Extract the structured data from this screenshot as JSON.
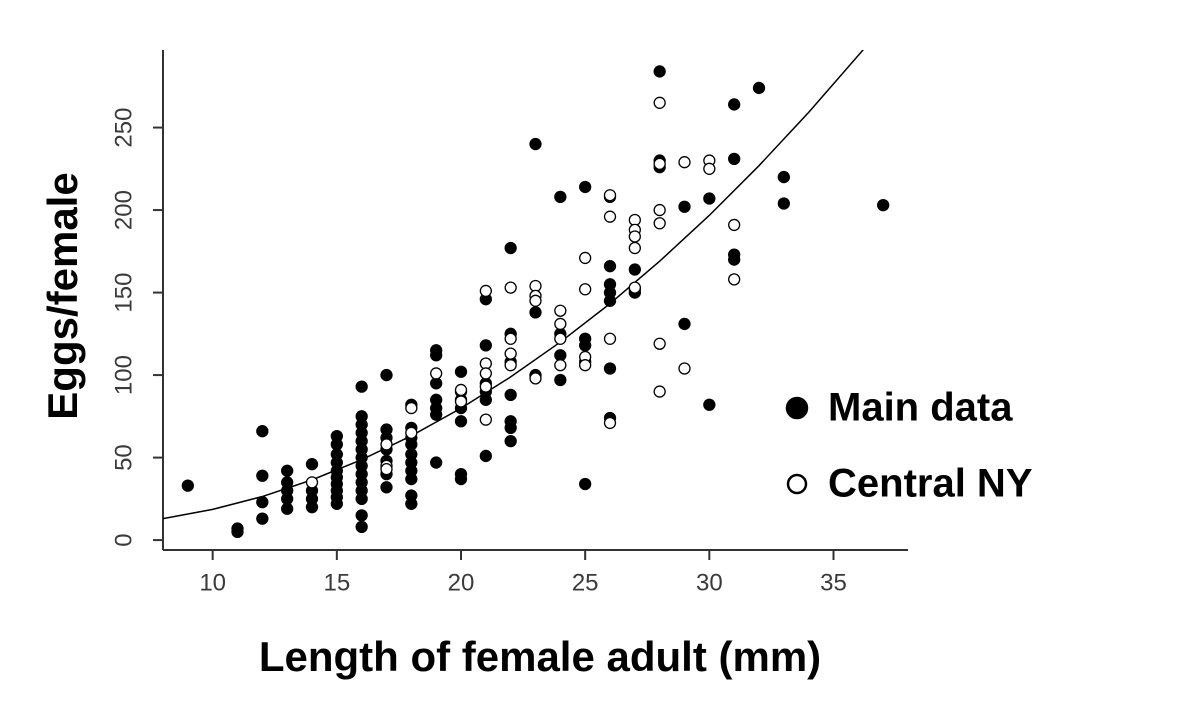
{
  "chart_data": {
    "type": "scatter",
    "x_label": "Length of female adult (mm)",
    "y_label": "Eggs/female",
    "xlim": [
      8,
      38
    ],
    "ylim": [
      -6,
      297
    ],
    "xticks": [
      10,
      15,
      20,
      25,
      30,
      35
    ],
    "yticks": [
      0,
      50,
      100,
      150,
      200,
      250
    ],
    "series": [
      {
        "name": "Main data",
        "color": "#000000",
        "marker": "filled",
        "x": [
          9,
          11,
          11,
          12,
          12,
          12,
          12,
          13,
          13,
          13,
          13,
          13,
          14,
          14,
          14,
          14,
          15,
          15,
          15,
          15,
          15,
          15,
          15,
          15,
          15,
          15,
          16,
          16,
          16,
          16,
          16,
          16,
          16,
          16,
          16,
          16,
          16,
          16,
          16,
          16,
          17,
          17,
          17,
          17,
          17,
          17,
          17,
          18,
          18,
          18,
          18,
          18,
          18,
          18,
          18,
          18,
          18,
          19,
          19,
          19,
          19,
          19,
          19,
          19,
          20,
          20,
          20,
          20,
          20,
          20,
          20,
          21,
          21,
          21,
          21,
          21,
          21,
          22,
          22,
          22,
          22,
          22,
          22,
          22,
          23,
          23,
          23,
          24,
          24,
          24,
          24,
          25,
          25,
          25,
          25,
          25,
          26,
          26,
          26,
          26,
          26,
          26,
          26,
          27,
          27,
          27,
          28,
          28,
          28,
          29,
          29,
          30,
          30,
          31,
          31,
          31,
          31,
          32,
          33,
          33,
          37
        ],
        "values": [
          33,
          5,
          7,
          66,
          39,
          23,
          13,
          42,
          35,
          30,
          25,
          19,
          46,
          30,
          25,
          20,
          63,
          58,
          52,
          47,
          42,
          38,
          34,
          30,
          26,
          22,
          93,
          75,
          70,
          65,
          60,
          55,
          50,
          45,
          40,
          35,
          30,
          25,
          15,
          8,
          100,
          67,
          62,
          55,
          48,
          40,
          32,
          82,
          68,
          62,
          58,
          52,
          47,
          42,
          37,
          27,
          22,
          115,
          112,
          95,
          85,
          80,
          76,
          47,
          102,
          90,
          85,
          80,
          72,
          40,
          37,
          146,
          118,
          95,
          90,
          85,
          51,
          177,
          125,
          108,
          88,
          72,
          68,
          60,
          240,
          138,
          100,
          208,
          125,
          112,
          97,
          214,
          122,
          118,
          108,
          34,
          208,
          166,
          155,
          150,
          145,
          104,
          74,
          164,
          152,
          150,
          284,
          230,
          226,
          202,
          131,
          207,
          82,
          264,
          231,
          173,
          170,
          274,
          220,
          204,
          203
        ]
      },
      {
        "name": "Central NY",
        "color": "#000000",
        "marker": "open",
        "x": [
          14,
          17,
          17,
          17,
          18,
          18,
          19,
          20,
          20,
          21,
          21,
          21,
          21,
          21,
          22,
          22,
          22,
          22,
          23,
          23,
          23,
          23,
          24,
          24,
          24,
          24,
          25,
          25,
          25,
          25,
          26,
          26,
          26,
          26,
          27,
          27,
          27,
          27,
          27,
          28,
          28,
          28,
          28,
          28,
          28,
          29,
          29,
          30,
          30,
          31,
          31
        ],
        "values": [
          35,
          58,
          45,
          43,
          80,
          65,
          101,
          91,
          84,
          151,
          107,
          101,
          93,
          73,
          153,
          122,
          113,
          106,
          154,
          148,
          145,
          98,
          139,
          131,
          122,
          106,
          171,
          152,
          111,
          106,
          209,
          196,
          122,
          71,
          194,
          188,
          184,
          177,
          153,
          265,
          228,
          200,
          192,
          119,
          90,
          229,
          104,
          230,
          225,
          191,
          158
        ]
      }
    ],
    "curve": {
      "color": "#000000",
      "x": [
        8,
        10,
        12,
        14,
        16,
        18,
        20,
        22,
        24,
        26,
        28,
        30,
        32,
        34,
        36.2
      ],
      "values": [
        13,
        18.6,
        26.4,
        36.5,
        48.7,
        63.2,
        79.9,
        98.9,
        120,
        143.3,
        169,
        196.8,
        226.9,
        259.2,
        297.2
      ]
    }
  }
}
